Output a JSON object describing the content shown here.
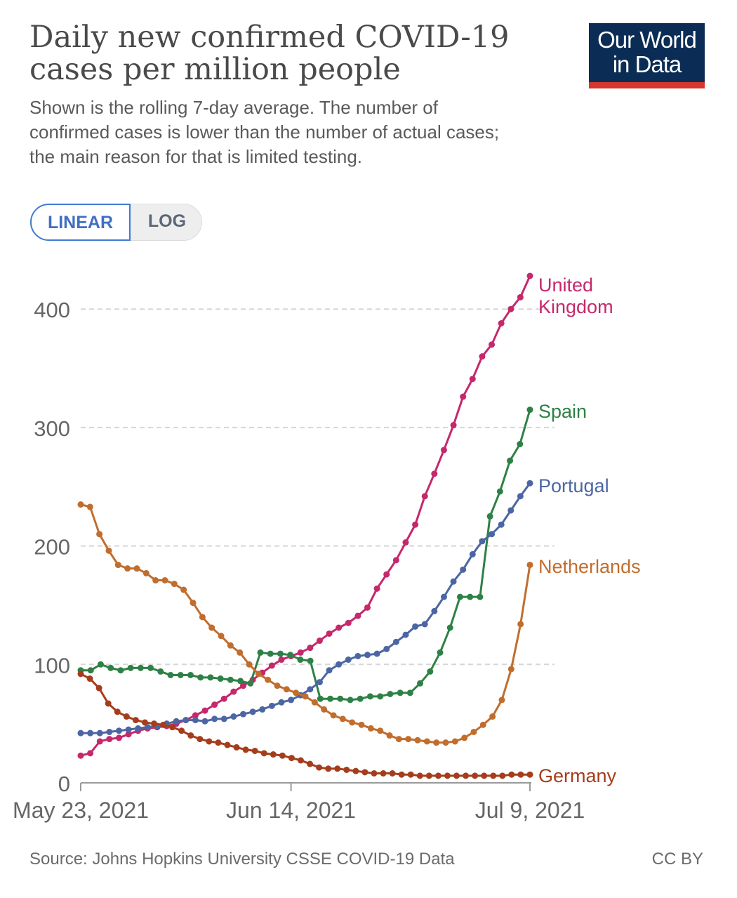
{
  "header": {
    "title": "Daily new confirmed COVID-19 cases per million people",
    "subtitle": "Shown is the rolling 7-day average. The number of confirmed cases is lower than the number of actual cases; the main reason for that is limited testing.",
    "logo_line1": "Our World",
    "logo_line2": "in Data",
    "logo_colors": {
      "background": "#0b2d55",
      "stripe": "#d3372d"
    }
  },
  "scale_toggle": {
    "options": [
      "LINEAR",
      "LOG"
    ],
    "selected": "LINEAR"
  },
  "footer": {
    "source": "Source: Johns Hopkins University CSSE COVID-19 Data",
    "license": "CC BY"
  },
  "chart_data": {
    "type": "line",
    "title": "Daily new confirmed COVID-19 cases per million people",
    "xlabel": "",
    "ylabel": "",
    "x_start_date": "2021-05-23",
    "x_end_date": "2021-07-09",
    "x_ticks": [
      "May 23, 2021",
      "Jun 14, 2021",
      "Jul 9, 2021"
    ],
    "y_ticks": [
      0,
      100,
      200,
      300,
      400
    ],
    "ylim": [
      0,
      430
    ],
    "grid": "horizontal dashed",
    "legend": "labels at line ends (right)",
    "series": [
      {
        "name": "United Kingdom",
        "color": "#c5286b",
        "values": [
          23,
          25,
          35,
          37,
          38,
          41,
          44,
          46,
          47,
          48,
          50,
          53,
          57,
          61,
          66,
          71,
          77,
          82,
          87,
          93,
          99,
          104,
          107,
          110,
          114,
          120,
          126,
          131,
          135,
          141,
          148,
          164,
          176,
          188,
          203,
          218,
          242,
          261,
          281,
          302,
          326,
          341,
          360,
          370,
          388,
          400,
          410,
          428
        ]
      },
      {
        "name": "Spain",
        "color": "#2e8146",
        "values": [
          95,
          95,
          100,
          97,
          95,
          97,
          97,
          97,
          94,
          91,
          91,
          91,
          89,
          89,
          88,
          87,
          86,
          84,
          110,
          109,
          109,
          108,
          104,
          103,
          71,
          71,
          71,
          70,
          71,
          73,
          73,
          75,
          76,
          76,
          84,
          94,
          110,
          131,
          157,
          157,
          157,
          225,
          246,
          272,
          286,
          315
        ]
      },
      {
        "name": "Portugal",
        "color": "#4c66a4",
        "values": [
          42,
          42,
          42,
          43,
          44,
          45,
          46,
          47,
          48,
          50,
          52,
          53,
          53,
          52,
          54,
          54,
          56,
          58,
          60,
          62,
          65,
          68,
          70,
          74,
          79,
          85,
          95,
          100,
          104,
          107,
          108,
          109,
          113,
          119,
          125,
          132,
          134,
          145,
          157,
          170,
          180,
          193,
          204,
          210,
          218,
          230,
          242,
          253
        ]
      },
      {
        "name": "Netherlands",
        "color": "#c16d2e",
        "values": [
          235,
          233,
          210,
          196,
          184,
          181,
          181,
          177,
          171,
          171,
          168,
          163,
          152,
          140,
          131,
          124,
          116,
          110,
          100,
          92,
          87,
          82,
          79,
          76,
          73,
          68,
          62,
          57,
          54,
          51,
          49,
          46,
          44,
          40,
          37,
          37,
          36,
          35,
          34,
          34,
          35,
          38,
          43,
          49,
          56,
          70,
          96,
          134,
          184
        ]
      },
      {
        "name": "Germany",
        "color": "#a53d1c",
        "values": [
          92,
          88,
          80,
          67,
          60,
          56,
          53,
          51,
          50,
          49,
          47,
          44,
          40,
          37,
          35,
          34,
          32,
          30,
          28,
          27,
          25,
          24,
          23,
          21,
          19,
          16,
          13,
          12,
          12,
          11,
          10,
          9,
          8,
          8,
          8,
          7,
          7,
          6,
          6,
          6,
          6,
          6,
          6,
          6,
          6,
          6,
          6,
          7,
          7,
          7
        ]
      }
    ]
  }
}
